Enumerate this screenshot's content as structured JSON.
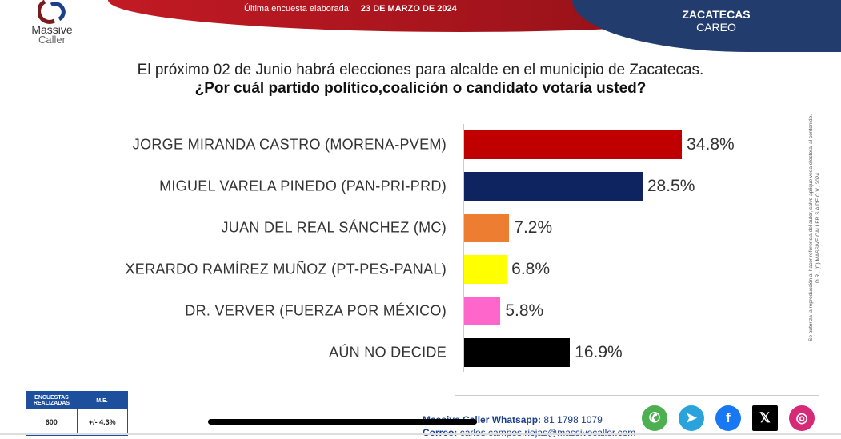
{
  "header": {
    "logo_line1": "Massive",
    "logo_line2": "Caller",
    "survey_label": "Última encuesta elaborada:",
    "survey_date": "23 DE MARZO DE 2024",
    "region": "ZACATECAS",
    "subregion": "CAREO"
  },
  "question": {
    "intro": "El próximo 02 de Junio habrá elecciones para alcalde en el municipio de Zacatecas.",
    "text": "¿Por cuál partido político,coalición o candidato votaría usted?"
  },
  "chart_data": {
    "type": "bar",
    "orientation": "horizontal",
    "title": "¿Por cuál partido político,coalición o candidato votaría usted?",
    "categories": [
      "JORGE MIRANDA CASTRO (MORENA-PVEM)",
      "MIGUEL VARELA PINEDO  (PAN-PRI-PRD)",
      "JUAN DEL REAL SÁNCHEZ (MC)",
      "XERARDO RAMÍREZ MUÑOZ (PT-PES-PANAL)",
      "DR. VERVER (FUERZA POR MÉXICO)",
      "AÚN NO DECIDE"
    ],
    "values": [
      34.8,
      28.5,
      7.2,
      6.8,
      5.8,
      16.9
    ],
    "value_labels": [
      "34.8%",
      "28.5%",
      "7.2%",
      "6.8%",
      "5.8%",
      "16.9%"
    ],
    "colors": [
      "#c00000",
      "#0d2461",
      "#ed7d31",
      "#ffff00",
      "#ff66cc",
      "#000000"
    ],
    "xlim": [
      0,
      40
    ]
  },
  "legal": {
    "line1": "D.R., (C) MASSIVE CALLER S.A DE C.V., 2024",
    "line2": "Se autoriza la reproducción al hacer referencia del autor, salvo aplique veda electoral al contenido."
  },
  "stats": {
    "h1": "ENCUESTAS REALIZADAS",
    "h2": "M.E.",
    "v1": "600",
    "v2": "+/- 4.3%"
  },
  "contact": {
    "wa_label": "Massive Caller Whatsapp:",
    "wa": "81 1798 1079",
    "mail_label": "Correo:",
    "mail": "carlos.campos.riojas@massivecaller.com"
  },
  "social": [
    {
      "icon": "whatsapp-icon",
      "glyph": "✆",
      "color": "#4caf50"
    },
    {
      "icon": "telegram-icon",
      "glyph": "➤",
      "color": "#2aa3dc"
    },
    {
      "icon": "facebook-icon",
      "glyph": "f",
      "color": "#1877f2"
    },
    {
      "icon": "x-icon",
      "glyph": "𝕏",
      "color": "#000000"
    },
    {
      "icon": "instagram-icon",
      "glyph": "◎",
      "color": "#d62976"
    }
  ]
}
